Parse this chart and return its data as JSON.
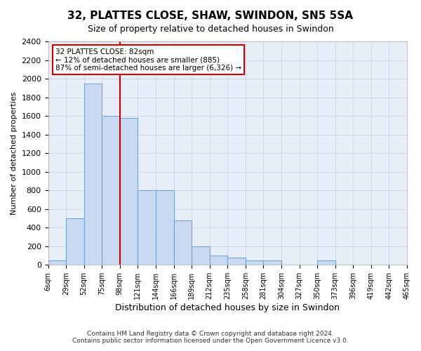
{
  "title_line1": "32, PLATTES CLOSE, SHAW, SWINDON, SN5 5SA",
  "title_line2": "Size of property relative to detached houses in Swindon",
  "xlabel": "Distribution of detached houses by size in Swindon",
  "ylabel": "Number of detached properties",
  "bin_labels": [
    "6sqm",
    "29sqm",
    "52sqm",
    "75sqm",
    "98sqm",
    "121sqm",
    "144sqm",
    "166sqm",
    "189sqm",
    "212sqm",
    "235sqm",
    "258sqm",
    "281sqm",
    "304sqm",
    "327sqm",
    "350sqm",
    "373sqm",
    "396sqm",
    "419sqm",
    "442sqm",
    "465sqm"
  ],
  "bar_heights": [
    50,
    500,
    1950,
    1600,
    1575,
    800,
    800,
    475,
    200,
    100,
    75,
    50,
    50,
    0,
    0,
    50,
    0,
    0,
    0,
    0
  ],
  "bar_color": "#c9d9f0",
  "bar_edge_color": "#6ea6d8",
  "red_line_bin": 4,
  "annotation_title": "32 PLATTES CLOSE: 82sqm",
  "annotation_line2": "← 12% of detached houses are smaller (885)",
  "annotation_line3": "87% of semi-detached houses are larger (6,326) →",
  "annotation_box_color": "#ffffff",
  "annotation_border_color": "#cc0000",
  "red_line_color": "#cc0000",
  "ylim": [
    0,
    2400
  ],
  "yticks": [
    0,
    200,
    400,
    600,
    800,
    1000,
    1200,
    1400,
    1600,
    1800,
    2000,
    2200,
    2400
  ],
  "grid_color": "#d0d8e8",
  "bg_color": "#e8eef8",
  "footnote1": "Contains HM Land Registry data © Crown copyright and database right 2024.",
  "footnote2": "Contains public sector information licensed under the Open Government Licence v3.0."
}
